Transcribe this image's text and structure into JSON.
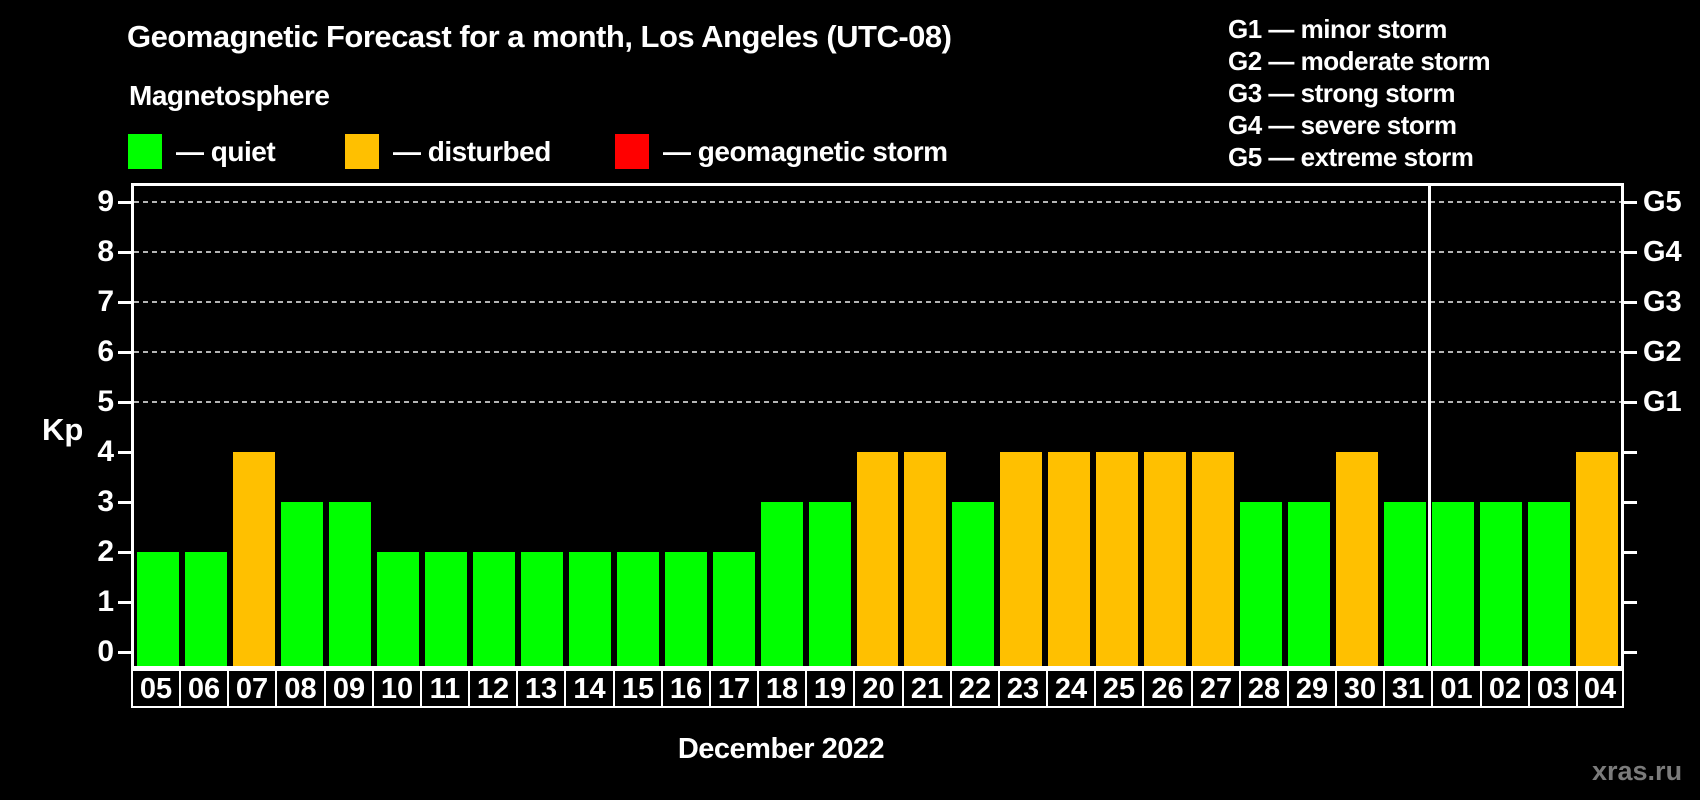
{
  "title": "Geomagnetic Forecast for a month, Los Angeles (UTC-08)",
  "subtitle": "Magnetosphere",
  "legend": [
    {
      "status": "quiet",
      "label": "— quiet",
      "color": "#00ff00"
    },
    {
      "status": "disturbed",
      "label": "— disturbed",
      "color": "#ffc000"
    },
    {
      "status": "storm",
      "label": "— geomagnetic storm",
      "color": "#ff0000"
    }
  ],
  "g_legend": [
    "G1 — minor storm",
    "G2 — moderate storm",
    "G3 — strong storm",
    "G4 — severe storm",
    "G5 — extreme storm"
  ],
  "watermark": "xras.ru",
  "chart_data": {
    "type": "bar",
    "title": "Geomagnetic Forecast for a month, Los Angeles (UTC-08)",
    "ylabel": "Kp",
    "xlabel": "December 2022",
    "ylim": [
      0,
      9
    ],
    "yticks": [
      0,
      1,
      2,
      3,
      4,
      5,
      6,
      7,
      8,
      9
    ],
    "gridlines": [
      5,
      6,
      7,
      8,
      9
    ],
    "grid_style": "dashed horizontal lines at storm levels only",
    "right_axis_labels": {
      "5": "G1",
      "6": "G2",
      "7": "G3",
      "8": "G4",
      "9": "G5"
    },
    "legend_position": "top-left",
    "categories": [
      "05",
      "06",
      "07",
      "08",
      "09",
      "10",
      "11",
      "12",
      "13",
      "14",
      "15",
      "16",
      "17",
      "18",
      "19",
      "20",
      "21",
      "22",
      "23",
      "24",
      "25",
      "26",
      "27",
      "28",
      "29",
      "30",
      "31",
      "01",
      "02",
      "03",
      "04"
    ],
    "values": [
      2,
      2,
      4,
      3,
      3,
      2,
      2,
      2,
      2,
      2,
      2,
      2,
      2,
      3,
      3,
      4,
      4,
      3,
      4,
      4,
      4,
      4,
      4,
      3,
      3,
      4,
      3,
      3,
      3,
      3,
      4
    ],
    "statuses": [
      "quiet",
      "quiet",
      "disturbed",
      "quiet",
      "quiet",
      "quiet",
      "quiet",
      "quiet",
      "quiet",
      "quiet",
      "quiet",
      "quiet",
      "quiet",
      "quiet",
      "quiet",
      "disturbed",
      "disturbed",
      "quiet",
      "disturbed",
      "disturbed",
      "disturbed",
      "disturbed",
      "disturbed",
      "quiet",
      "quiet",
      "disturbed",
      "quiet",
      "quiet",
      "quiet",
      "quiet",
      "disturbed"
    ],
    "month_separator_index": 27,
    "colors": {
      "quiet": "#00ff00",
      "disturbed": "#ffc000",
      "storm": "#ff0000"
    }
  }
}
